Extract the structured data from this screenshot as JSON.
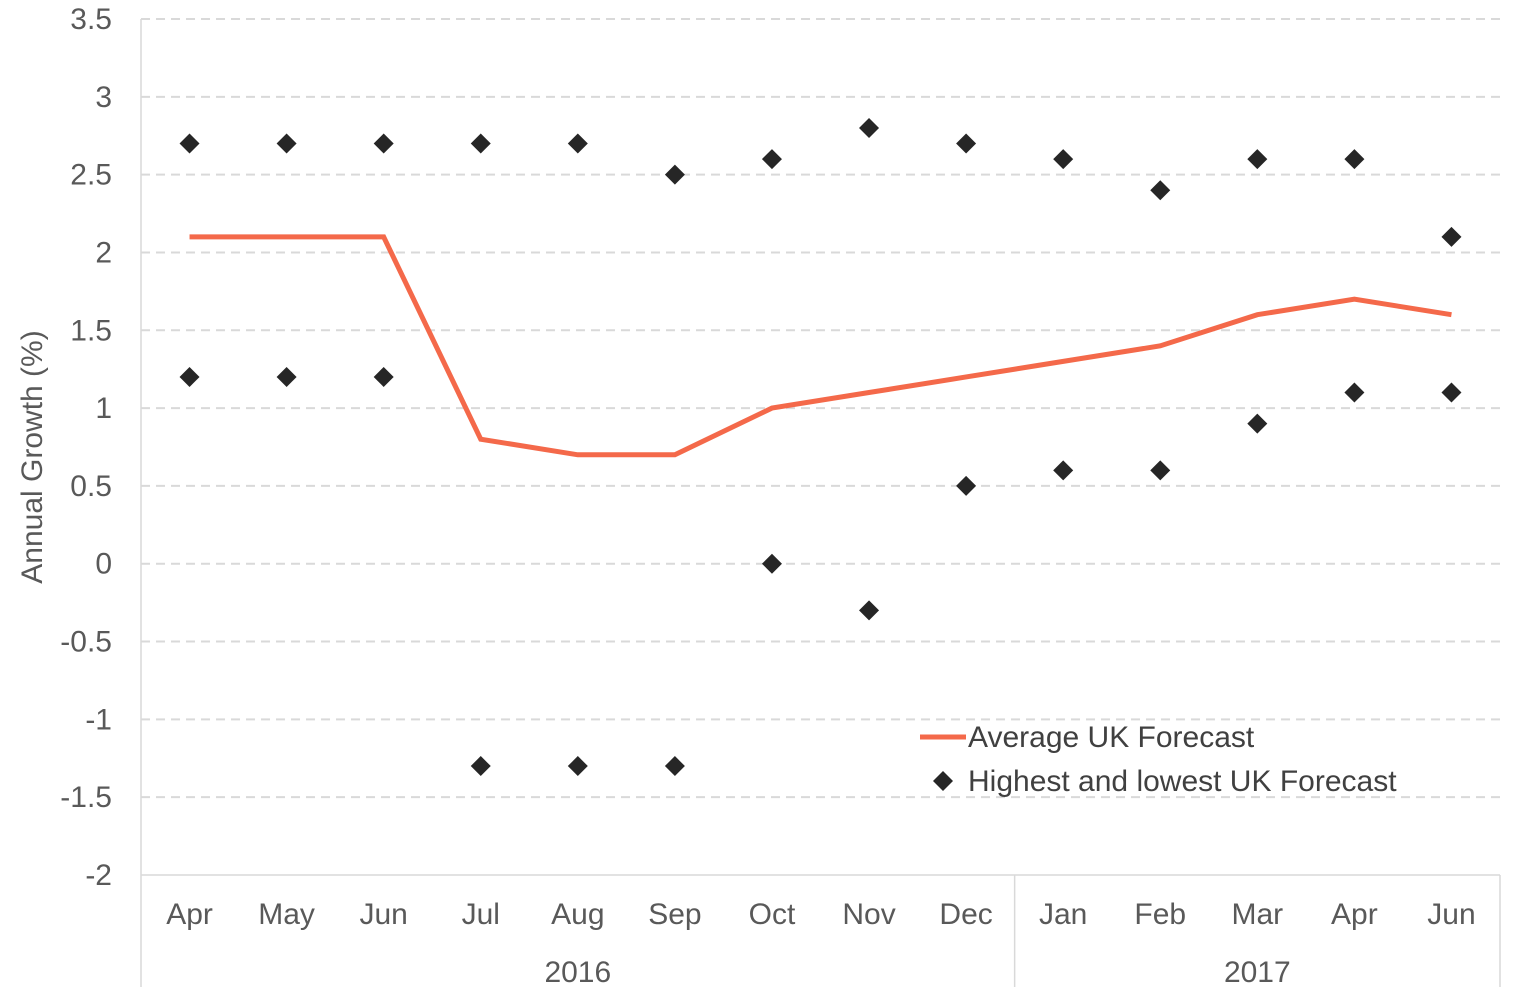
{
  "chart_data": {
    "type": "line",
    "title": "",
    "ylabel": "Annual Growth (%)",
    "ylim": [
      -2,
      3.5
    ],
    "yticks": [
      "3.5",
      "3",
      "2.5",
      "2",
      "1.5",
      "1",
      "0.5",
      "0",
      "-0.5",
      "-1",
      "-1.5",
      "-2"
    ],
    "grid": true,
    "legend_position": "bottom-right",
    "categories": [
      "Apr",
      "May",
      "Jun",
      "Jul",
      "Aug",
      "Sep",
      "Oct",
      "Nov",
      "Dec",
      "Jan",
      "Feb",
      "Mar",
      "Apr",
      "Jun"
    ],
    "groups": [
      {
        "label": "2016",
        "count": 9
      },
      {
        "label": "2017",
        "count": 5
      }
    ],
    "series": [
      {
        "name": "Average UK Forecast",
        "type": "line",
        "color": "#f4694a",
        "values": [
          2.1,
          2.1,
          2.1,
          0.8,
          0.7,
          0.7,
          1.0,
          1.1,
          1.2,
          1.3,
          1.4,
          1.6,
          1.7,
          1.6
        ]
      },
      {
        "name": "Highest and lowest UK Forecast",
        "type": "scatter",
        "color": "#262626",
        "marker": "diamond",
        "high": [
          2.7,
          2.7,
          2.7,
          2.7,
          2.7,
          2.5,
          2.6,
          2.8,
          2.7,
          2.6,
          2.4,
          2.6,
          2.6,
          2.1
        ],
        "low": [
          1.2,
          1.2,
          1.2,
          -1.3,
          -1.3,
          -1.3,
          0.0,
          -0.3,
          0.5,
          0.6,
          0.6,
          0.9,
          1.1,
          1.1
        ]
      }
    ]
  }
}
